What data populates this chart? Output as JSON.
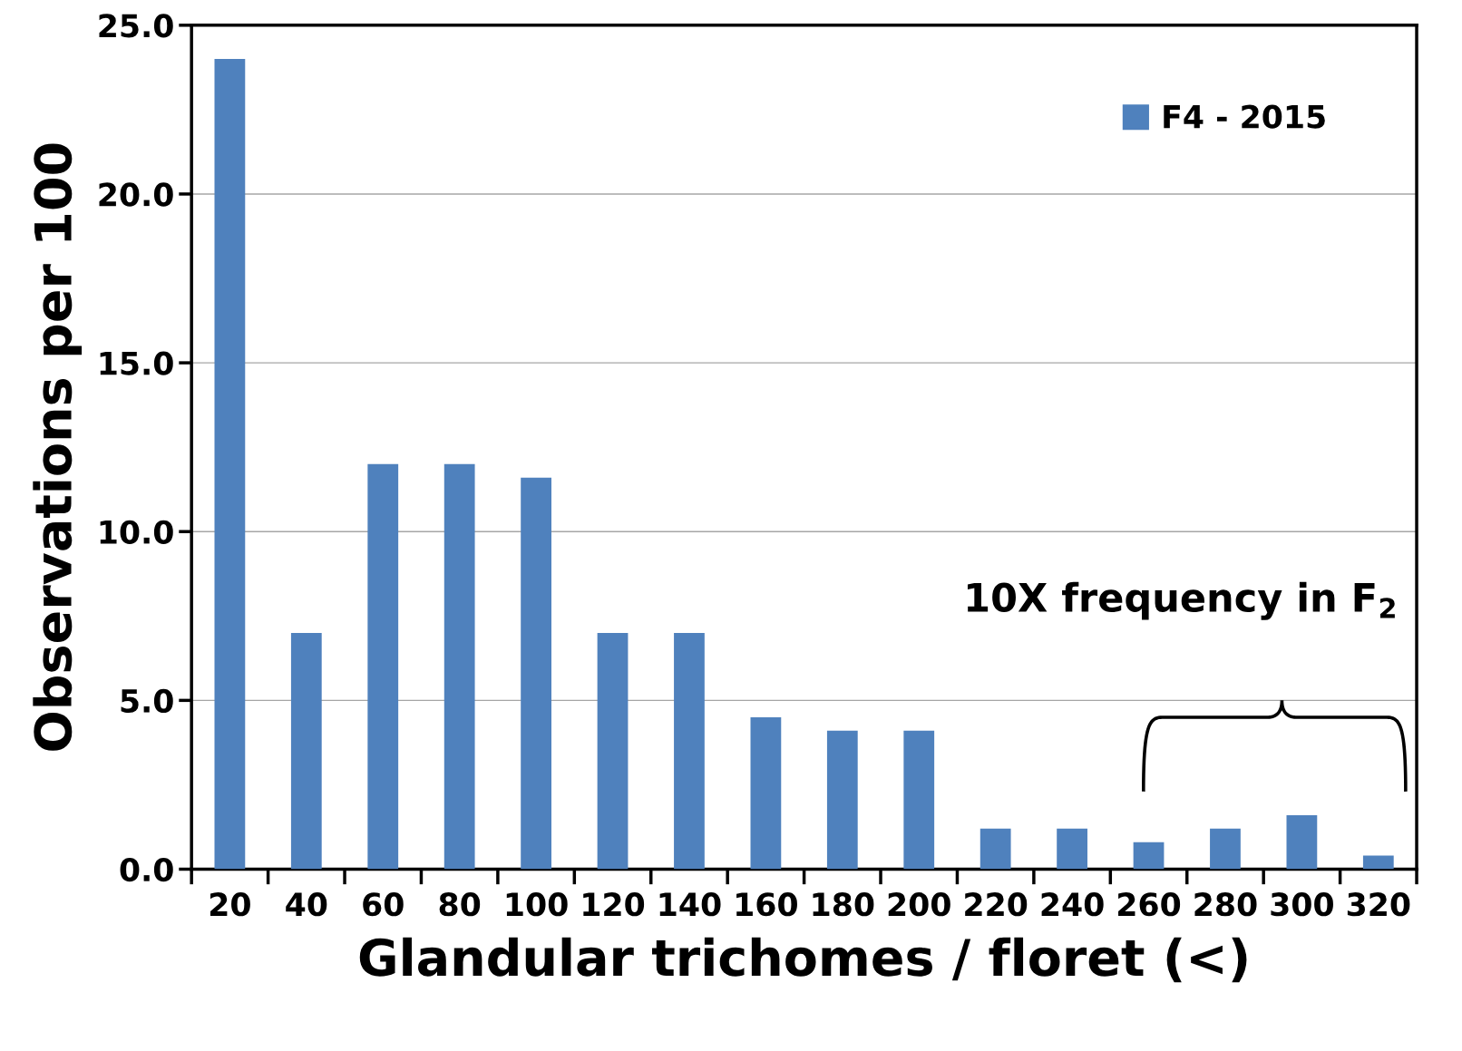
{
  "chart_data": {
    "type": "bar",
    "categories": [
      "20",
      "40",
      "60",
      "80",
      "100",
      "120",
      "140",
      "160",
      "180",
      "200",
      "220",
      "240",
      "260",
      "280",
      "300",
      "320"
    ],
    "series": [
      {
        "name": "F4 - 2015",
        "color": "#4f81bd",
        "values": [
          24.0,
          7.0,
          12.0,
          12.0,
          11.6,
          7.0,
          7.0,
          4.5,
          4.1,
          4.1,
          1.2,
          1.2,
          0.8,
          1.2,
          1.6,
          0.4
        ]
      }
    ],
    "xlabel": "Glandular trichomes / floret (<)",
    "ylabel": "Observations per 100",
    "ylim": [
      0,
      25
    ],
    "yticks": [
      {
        "value": 0,
        "label": "0.0"
      },
      {
        "value": 5,
        "label": "5.0"
      },
      {
        "value": 10,
        "label": "10.0"
      },
      {
        "value": 15,
        "label": "15.0"
      },
      {
        "value": 20,
        "label": "20.0"
      },
      {
        "value": 25,
        "label": "25.0"
      }
    ],
    "grid": "y",
    "legend": "top right",
    "annotations": [
      "10X frequency in F$_{2}$"
    ]
  }
}
